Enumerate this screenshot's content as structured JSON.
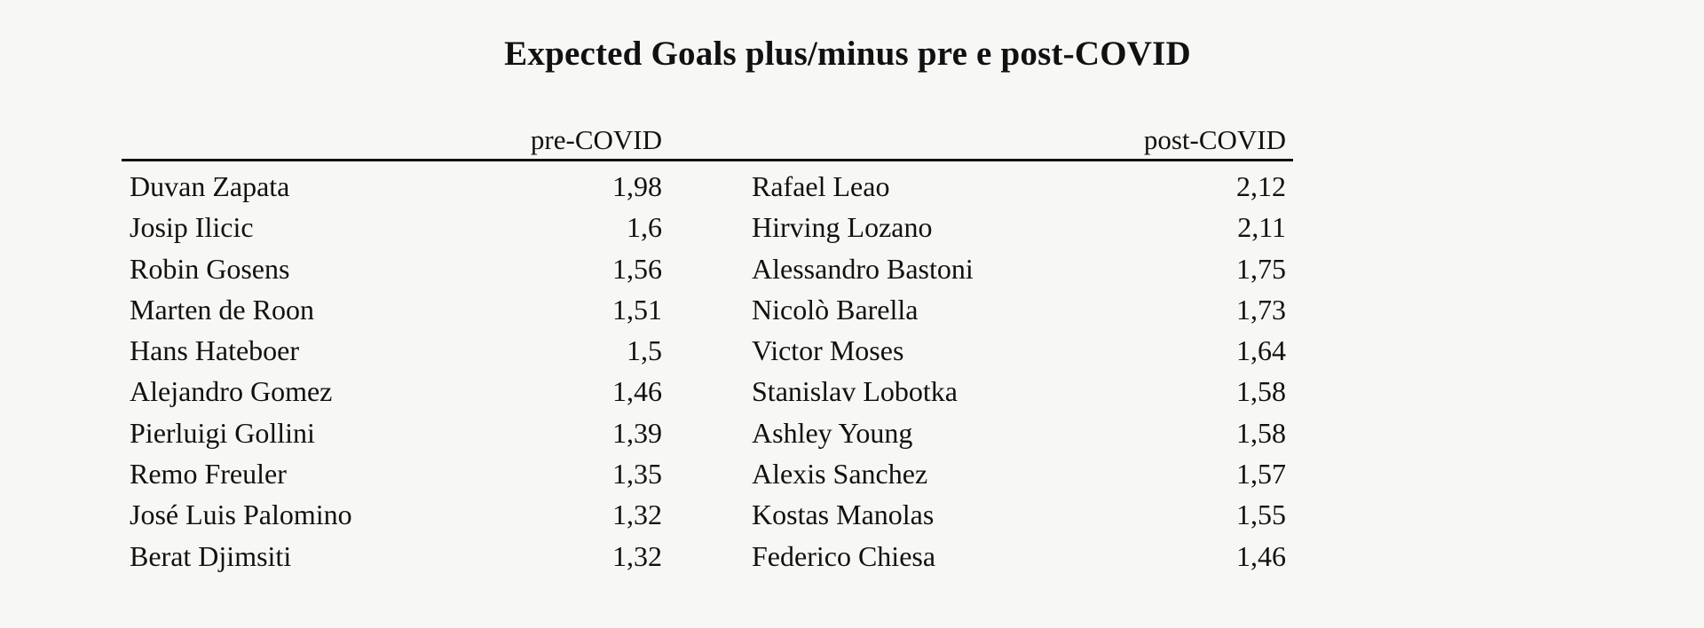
{
  "title": "Expected Goals plus/minus pre e post-COVID",
  "headers": {
    "pre": "pre-COVID",
    "post": "post-COVID"
  },
  "pre_covid": [
    {
      "name": "Duvan Zapata",
      "value": "1,98"
    },
    {
      "name": "Josip Ilicic",
      "value": "1,6"
    },
    {
      "name": "Robin Gosens",
      "value": "1,56"
    },
    {
      "name": "Marten de Roon",
      "value": "1,51"
    },
    {
      "name": "Hans Hateboer",
      "value": "1,5"
    },
    {
      "name": "Alejandro Gomez",
      "value": "1,46"
    },
    {
      "name": "Pierluigi Gollini",
      "value": "1,39"
    },
    {
      "name": "Remo Freuler",
      "value": "1,35"
    },
    {
      "name": "José Luis Palomino",
      "value": "1,32"
    },
    {
      "name": "Berat Djimsiti",
      "value": "1,32"
    }
  ],
  "post_covid": [
    {
      "name": "Rafael Leao",
      "value": "2,12"
    },
    {
      "name": "Hirving Lozano",
      "value": "2,11"
    },
    {
      "name": "Alessandro Bastoni",
      "value": "1,75"
    },
    {
      "name": "Nicolò Barella",
      "value": "1,73"
    },
    {
      "name": "Victor Moses",
      "value": "1,64"
    },
    {
      "name": "Stanislav Lobotka",
      "value": "1,58"
    },
    {
      "name": "Ashley Young",
      "value": "1,58"
    },
    {
      "name": "Alexis Sanchez",
      "value": "1,57"
    },
    {
      "name": "Kostas Manolas",
      "value": "1,55"
    },
    {
      "name": "Federico Chiesa",
      "value": "1,46"
    }
  ]
}
